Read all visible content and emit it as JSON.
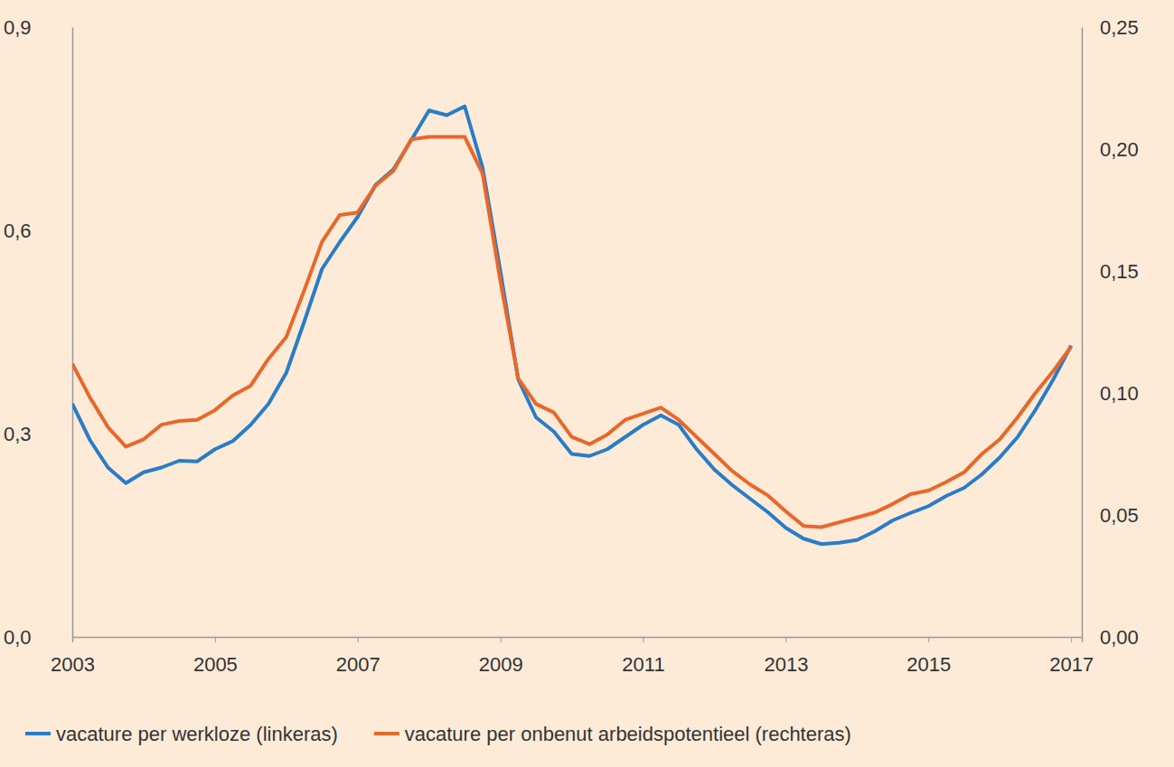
{
  "chart_data": {
    "type": "line",
    "x": [
      2003,
      2003.25,
      2003.5,
      2003.75,
      2004,
      2004.25,
      2004.5,
      2004.75,
      2005,
      2005.25,
      2005.5,
      2005.75,
      2006,
      2006.25,
      2006.5,
      2006.75,
      2007,
      2007.25,
      2007.5,
      2007.75,
      2008,
      2008.25,
      2008.5,
      2008.75,
      2009,
      2009.25,
      2009.5,
      2009.75,
      2010,
      2010.25,
      2010.5,
      2010.75,
      2011,
      2011.25,
      2011.5,
      2011.75,
      2012,
      2012.25,
      2012.5,
      2012.75,
      2013,
      2013.25,
      2013.5,
      2013.75,
      2014,
      2014.25,
      2014.5,
      2014.75,
      2015,
      2015.25,
      2015.5,
      2015.75,
      2016,
      2016.25,
      2016.5,
      2016.75,
      2017
    ],
    "xlim": [
      2003,
      2017.15
    ],
    "xticks": [
      2003,
      2005,
      2007,
      2009,
      2011,
      2013,
      2015,
      2017
    ],
    "ylim": [
      0,
      0.9
    ],
    "yticks": [
      {
        "value": 0,
        "label": "0,0"
      },
      {
        "value": 0.3,
        "label": "0,3"
      },
      {
        "value": 0.6,
        "label": "0,6"
      },
      {
        "value": 0.9,
        "label": "0,9"
      }
    ],
    "y2lim": [
      0,
      0.25
    ],
    "y2ticks": [
      {
        "value": 0,
        "label": "0,00"
      },
      {
        "value": 0.05,
        "label": "0,05"
      },
      {
        "value": 0.1,
        "label": "0,10"
      },
      {
        "value": 0.15,
        "label": "0,15"
      },
      {
        "value": 0.2,
        "label": "0,20"
      },
      {
        "value": 0.25,
        "label": "0,25"
      }
    ],
    "grid": false,
    "legend": "bottom",
    "series": [
      {
        "name": "vacature per werkloze (linkeras)",
        "color": "#2a7cc7",
        "values": [
          0.344,
          0.29,
          0.25,
          0.227,
          0.243,
          0.25,
          0.26,
          0.259,
          0.277,
          0.289,
          0.313,
          0.344,
          0.39,
          0.465,
          0.543,
          0.583,
          0.62,
          0.667,
          0.69,
          0.733,
          0.777,
          0.77,
          0.783,
          0.693,
          0.54,
          0.38,
          0.324,
          0.303,
          0.27,
          0.267,
          0.277,
          0.295,
          0.313,
          0.327,
          0.313,
          0.277,
          0.247,
          0.224,
          0.204,
          0.184,
          0.161,
          0.145,
          0.137,
          0.139,
          0.143,
          0.156,
          0.172,
          0.183,
          0.193,
          0.208,
          0.22,
          0.24,
          0.265,
          0.295,
          0.335,
          0.38,
          0.43
        ]
      },
      {
        "name": "vacature per onbenut arbeidspotentieel (rechteras)",
        "color": "#e8672a",
        "axis": "y2",
        "values": [
          0.112,
          0.098,
          0.086,
          0.078,
          0.081,
          0.087,
          0.0885,
          0.089,
          0.093,
          0.099,
          0.103,
          0.114,
          0.123,
          0.142,
          0.162,
          0.173,
          0.174,
          0.185,
          0.191,
          0.204,
          0.205,
          0.205,
          0.205,
          0.19,
          0.146,
          0.106,
          0.0955,
          0.092,
          0.082,
          0.079,
          0.083,
          0.089,
          0.0915,
          0.094,
          0.089,
          0.082,
          0.075,
          0.068,
          0.0625,
          0.058,
          0.0515,
          0.0455,
          0.045,
          0.047,
          0.049,
          0.051,
          0.0545,
          0.0585,
          0.06,
          0.0635,
          0.0675,
          0.075,
          0.081,
          0.09,
          0.1,
          0.109,
          0.119
        ]
      }
    ]
  }
}
